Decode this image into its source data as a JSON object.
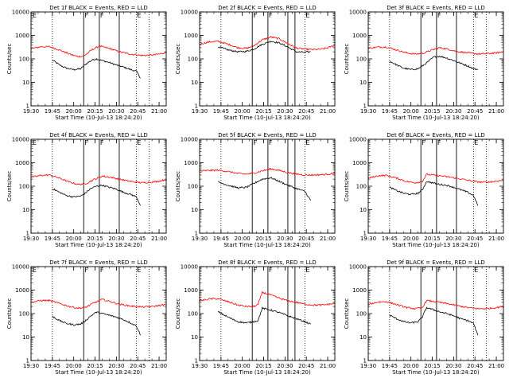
{
  "figure": {
    "xlabel": "Start Time (10-Jul-13 18:24:20)",
    "ylabel": "Counts/sec",
    "x_ticks": [
      "19:30",
      "19:45",
      "20:00",
      "20:15",
      "20:30",
      "20:45",
      "21:00"
    ],
    "y_ticks": [
      "1",
      "10",
      "100",
      "1000",
      "10000"
    ],
    "colors": {
      "events": "#000000",
      "lld": "#ff0000",
      "axes": "#000000"
    }
  },
  "chart_data": [
    {
      "type": "line",
      "title": "Det 1f BLACK = Events, RED = LLD",
      "x_range": [
        "19:30",
        "21:05"
      ],
      "y_scale": "log",
      "ylim": [
        1,
        10000
      ],
      "markers": {
        "dotted": [
          "19:45",
          "20:44",
          "20:53"
        ],
        "solid": [
          "20:07",
          "20:18",
          "20:32"
        ],
        "labels": [
          "E",
          "F",
          "F",
          "E"
        ]
      },
      "series": [
        {
          "color": "black",
          "x": [
            "19:45",
            "19:50",
            "19:55",
            "20:00",
            "20:05",
            "20:07",
            "20:10",
            "20:13",
            "20:16",
            "20:20",
            "20:25",
            "20:30",
            "20:35",
            "20:40",
            "20:44",
            "20:47"
          ],
          "y": [
            90,
            55,
            40,
            35,
            38,
            50,
            70,
            90,
            100,
            85,
            70,
            55,
            45,
            35,
            30,
            15
          ]
        },
        {
          "color": "red",
          "x": [
            "19:30",
            "19:37",
            "19:43",
            "19:50",
            "19:57",
            "20:03",
            "20:07",
            "20:13",
            "20:18",
            "20:25",
            "20:32",
            "20:40",
            "20:48",
            "20:55",
            "21:00",
            "21:05"
          ],
          "y": [
            270,
            330,
            330,
            240,
            160,
            125,
            130,
            250,
            350,
            280,
            200,
            160,
            140,
            145,
            160,
            190
          ]
        }
      ]
    },
    {
      "type": "line",
      "title": "Det 2f BLACK = Events, RED = LLD",
      "x_range": [
        "19:30",
        "21:05"
      ],
      "y_scale": "log",
      "ylim": [
        1,
        10000
      ],
      "markers": {
        "dotted": [
          "19:45",
          "20:44"
        ],
        "solid": [
          "20:07",
          "20:18",
          "20:32",
          "20:37"
        ],
        "labels": [
          "F",
          "F",
          "E"
        ]
      },
      "series": [
        {
          "color": "black",
          "x": [
            "19:43",
            "19:50",
            "19:57",
            "20:03",
            "20:08",
            "20:14",
            "20:20",
            "20:26",
            "20:32",
            "20:38",
            "20:44",
            "20:48"
          ],
          "y": [
            330,
            240,
            200,
            210,
            260,
            420,
            560,
            480,
            320,
            200,
            190,
            200
          ]
        },
        {
          "color": "red",
          "x": [
            "19:30",
            "19:36",
            "19:43",
            "19:50",
            "19:57",
            "20:03",
            "20:08",
            "20:14",
            "20:20",
            "20:26",
            "20:32",
            "20:38",
            "20:44",
            "20:50",
            "20:56",
            "21:01",
            "21:05"
          ],
          "y": [
            420,
            520,
            560,
            420,
            300,
            280,
            360,
            650,
            860,
            720,
            450,
            290,
            260,
            250,
            260,
            310,
            380
          ]
        }
      ]
    },
    {
      "type": "line",
      "title": "Det 3f BLACK = Events, RED = LLD",
      "x_range": [
        "19:30",
        "21:05"
      ],
      "y_scale": "log",
      "ylim": [
        1,
        10000
      ],
      "markers": {
        "dotted": [
          "19:45",
          "20:44",
          "20:53"
        ],
        "solid": [
          "20:07",
          "20:18",
          "20:32"
        ],
        "labels": [
          "F",
          "F",
          "E"
        ]
      },
      "series": [
        {
          "color": "black",
          "x": [
            "19:45",
            "19:50",
            "19:55",
            "20:00",
            "20:05",
            "20:08",
            "20:12",
            "20:16",
            "20:20",
            "20:25",
            "20:30",
            "20:35",
            "20:40",
            "20:44",
            "20:47"
          ],
          "y": [
            80,
            55,
            40,
            35,
            38,
            50,
            75,
            120,
            130,
            110,
            85,
            65,
            50,
            38,
            35
          ]
        },
        {
          "color": "red",
          "x": [
            "19:30",
            "19:37",
            "19:43",
            "19:50",
            "19:57",
            "20:03",
            "20:08",
            "20:14",
            "20:20",
            "20:26",
            "20:32",
            "20:40",
            "20:48",
            "20:55",
            "21:00",
            "21:05"
          ],
          "y": [
            280,
            320,
            320,
            240,
            180,
            160,
            170,
            230,
            300,
            260,
            210,
            180,
            160,
            170,
            180,
            200
          ]
        }
      ]
    },
    {
      "type": "line",
      "title": "Det 4f BLACK = Events, RED = LLD",
      "x_range": [
        "19:30",
        "21:05"
      ],
      "y_scale": "log",
      "ylim": [
        1,
        10000
      ],
      "markers": {
        "dotted": [
          "19:45",
          "20:44",
          "20:53"
        ],
        "solid": [
          "20:07",
          "20:18",
          "20:32"
        ],
        "labels": [
          "E",
          "F",
          "F",
          "E"
        ]
      },
      "series": [
        {
          "color": "black",
          "x": [
            "19:45",
            "19:50",
            "19:55",
            "20:00",
            "20:05",
            "20:08",
            "20:12",
            "20:16",
            "20:20",
            "20:25",
            "20:30",
            "20:35",
            "20:40",
            "20:44",
            "20:47"
          ],
          "y": [
            80,
            55,
            40,
            35,
            38,
            50,
            80,
            100,
            110,
            90,
            75,
            55,
            45,
            35,
            15
          ]
        },
        {
          "color": "red",
          "x": [
            "19:30",
            "19:37",
            "19:43",
            "19:50",
            "19:57",
            "20:03",
            "20:08",
            "20:14",
            "20:20",
            "20:26",
            "20:32",
            "20:40",
            "20:48",
            "20:55",
            "21:00",
            "21:05"
          ],
          "y": [
            240,
            290,
            300,
            220,
            150,
            120,
            125,
            190,
            270,
            240,
            200,
            160,
            140,
            150,
            165,
            195
          ]
        }
      ]
    },
    {
      "type": "line",
      "title": "Det 5f BLACK = Events, RED = LLD",
      "x_range": [
        "19:30",
        "21:05"
      ],
      "y_scale": "log",
      "ylim": [
        1,
        10000
      ],
      "markers": {
        "dotted": [
          "19:45",
          "20:44"
        ],
        "solid": [
          "20:07",
          "20:18",
          "20:32",
          "20:37"
        ],
        "labels": [
          "F",
          "F",
          "E"
        ]
      },
      "series": [
        {
          "color": "black",
          "x": [
            "19:43",
            "19:50",
            "19:57",
            "20:03",
            "20:08",
            "20:14",
            "20:20",
            "20:26",
            "20:32",
            "20:38",
            "20:44",
            "20:48"
          ],
          "y": [
            150,
            110,
            85,
            90,
            130,
            200,
            230,
            160,
            110,
            80,
            60,
            25
          ]
        },
        {
          "color": "red",
          "x": [
            "19:30",
            "19:37",
            "19:43",
            "19:50",
            "19:57",
            "20:03",
            "20:08",
            "20:14",
            "20:20",
            "20:26",
            "20:32",
            "20:38",
            "20:44",
            "20:50",
            "20:56",
            "21:01",
            "21:05"
          ],
          "y": [
            440,
            470,
            480,
            420,
            350,
            330,
            360,
            450,
            550,
            470,
            380,
            330,
            300,
            300,
            310,
            330,
            360
          ]
        }
      ]
    },
    {
      "type": "line",
      "title": "Det 6f BLACK = Events, RED = LLD",
      "x_range": [
        "19:30",
        "21:05"
      ],
      "y_scale": "log",
      "ylim": [
        1,
        10000
      ],
      "markers": {
        "dotted": [
          "19:45",
          "20:44",
          "20:53"
        ],
        "solid": [
          "20:07",
          "20:18",
          "20:32"
        ],
        "labels": [
          "F",
          "F",
          "E"
        ]
      },
      "series": [
        {
          "color": "black",
          "x": [
            "19:45",
            "19:50",
            "19:55",
            "20:00",
            "20:05",
            "20:08",
            "20:11",
            "20:15",
            "20:20",
            "20:25",
            "20:30",
            "20:35",
            "20:40",
            "20:44",
            "20:47"
          ],
          "y": [
            90,
            65,
            50,
            45,
            50,
            70,
            160,
            140,
            120,
            110,
            90,
            70,
            55,
            40,
            15
          ]
        },
        {
          "color": "red",
          "x": [
            "19:30",
            "19:37",
            "19:43",
            "19:50",
            "19:57",
            "20:03",
            "20:08",
            "20:11",
            "20:15",
            "20:20",
            "20:26",
            "20:32",
            "20:40",
            "20:48",
            "20:55",
            "21:00",
            "21:05"
          ],
          "y": [
            220,
            280,
            290,
            220,
            160,
            140,
            160,
            320,
            300,
            280,
            250,
            220,
            180,
            150,
            150,
            165,
            180
          ]
        }
      ]
    },
    {
      "type": "line",
      "title": "Det 7f BLACK = Events, RED = LLD",
      "x_range": [
        "19:30",
        "21:05"
      ],
      "y_scale": "log",
      "ylim": [
        1,
        10000
      ],
      "markers": {
        "dotted": [
          "19:45",
          "20:44",
          "20:53"
        ],
        "solid": [
          "20:07",
          "20:18",
          "20:32"
        ],
        "labels": [
          "E",
          "F",
          "F",
          "E"
        ]
      },
      "series": [
        {
          "color": "black",
          "x": [
            "19:45",
            "19:50",
            "19:55",
            "20:00",
            "20:05",
            "20:08",
            "20:12",
            "20:16",
            "20:20",
            "20:25",
            "20:30",
            "20:35",
            "20:40",
            "20:44",
            "20:47"
          ],
          "y": [
            75,
            50,
            38,
            33,
            36,
            48,
            80,
            115,
            100,
            85,
            70,
            55,
            40,
            30,
            12
          ]
        },
        {
          "color": "red",
          "x": [
            "19:30",
            "19:37",
            "19:43",
            "19:50",
            "19:57",
            "20:03",
            "20:08",
            "20:14",
            "20:20",
            "20:26",
            "20:32",
            "20:40",
            "20:48",
            "20:55",
            "21:00",
            "21:05"
          ],
          "y": [
            300,
            360,
            360,
            270,
            200,
            170,
            180,
            280,
            400,
            320,
            250,
            210,
            190,
            200,
            220,
            240
          ]
        }
      ]
    },
    {
      "type": "line",
      "title": "Det 8f BLACK = Events, RED = LLD",
      "x_range": [
        "19:30",
        "21:05"
      ],
      "y_scale": "log",
      "ylim": [
        1,
        10000
      ],
      "markers": {
        "dotted": [
          "19:45",
          "20:44"
        ],
        "solid": [
          "20:07",
          "20:18",
          "20:32",
          "20:37"
        ],
        "labels": [
          "F",
          "F",
          "E"
        ]
      },
      "series": [
        {
          "color": "black",
          "x": [
            "19:43",
            "19:50",
            "19:57",
            "20:03",
            "20:08",
            "20:11",
            "20:14",
            "20:20",
            "20:26",
            "20:32",
            "20:38",
            "20:44",
            "20:48"
          ],
          "y": [
            120,
            70,
            45,
            40,
            45,
            50,
            170,
            140,
            110,
            80,
            60,
            45,
            35
          ]
        },
        {
          "color": "red",
          "x": [
            "19:30",
            "19:37",
            "19:43",
            "19:50",
            "19:57",
            "20:03",
            "20:08",
            "20:11",
            "20:14",
            "20:20",
            "20:26",
            "20:32",
            "20:38",
            "20:44",
            "20:50",
            "20:56",
            "21:01",
            "21:05"
          ],
          "y": [
            350,
            420,
            430,
            320,
            230,
            200,
            200,
            240,
            800,
            620,
            450,
            350,
            300,
            250,
            230,
            230,
            250,
            270
          ]
        }
      ]
    },
    {
      "type": "line",
      "title": "Det 9f BLACK = Events, RED = LLD",
      "x_range": [
        "19:30",
        "21:05"
      ],
      "y_scale": "log",
      "ylim": [
        1,
        10000
      ],
      "markers": {
        "dotted": [
          "19:45",
          "20:44",
          "20:53"
        ],
        "solid": [
          "20:07",
          "20:18",
          "20:32"
        ],
        "labels": [
          "F",
          "F",
          "E"
        ]
      },
      "series": [
        {
          "color": "black",
          "x": [
            "19:45",
            "19:50",
            "19:55",
            "20:00",
            "20:05",
            "20:08",
            "20:11",
            "20:15",
            "20:20",
            "20:25",
            "20:30",
            "20:35",
            "20:40",
            "20:44",
            "20:47"
          ],
          "y": [
            85,
            60,
            45,
            40,
            45,
            70,
            180,
            150,
            120,
            100,
            80,
            60,
            50,
            38,
            12
          ]
        },
        {
          "color": "red",
          "x": [
            "19:30",
            "19:37",
            "19:43",
            "19:50",
            "19:57",
            "20:03",
            "20:08",
            "20:11",
            "20:15",
            "20:20",
            "20:26",
            "20:32",
            "20:40",
            "20:48",
            "20:55",
            "21:00",
            "21:05"
          ],
          "y": [
            250,
            310,
            320,
            240,
            180,
            160,
            180,
            360,
            330,
            300,
            260,
            220,
            180,
            160,
            165,
            180,
            200
          ]
        }
      ]
    }
  ]
}
